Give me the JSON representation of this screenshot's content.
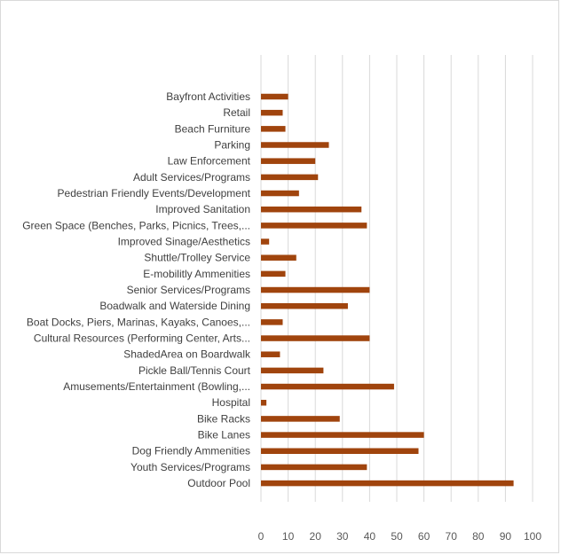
{
  "chart_data": {
    "type": "bar",
    "orientation": "horizontal",
    "categories": [
      "Bayfront Activities",
      "Retail",
      "Beach Furniture",
      "Parking",
      "Law Enforcement",
      "Adult Services/Programs",
      "Pedestrian Friendly Events/Development",
      "Improved Sanitation",
      "Green Space (Benches, Parks, Picnics, Trees,...",
      "Improved Sinage/Aesthetics",
      "Shuttle/Trolley Service",
      "E-mobilitly Ammenities",
      "Senior Services/Programs",
      "Boadwalk and Waterside Dining",
      "Boat Docks, Piers, Marinas, Kayaks, Canoes,...",
      "Cultural Resources (Performing Center, Arts...",
      "ShadedArea on Boardwalk",
      "Pickle Ball/Tennis Court",
      "Amusements/Entertainment (Bowling,...",
      "Hospital",
      "Bike Racks",
      "Bike Lanes",
      "Dog Friendly Ammenities",
      "Youth Services/Programs",
      "Outdoor Pool"
    ],
    "values": [
      10,
      8,
      9,
      25,
      20,
      21,
      14,
      37,
      39,
      3,
      13,
      9,
      40,
      32,
      8,
      40,
      7,
      23,
      49,
      2,
      29,
      60,
      58,
      39,
      93
    ],
    "xlim": [
      0,
      100
    ],
    "xticks": [
      "0",
      "10",
      "20",
      "30",
      "40",
      "50",
      "60",
      "70",
      "80",
      "90",
      "100"
    ],
    "grid": "vertical",
    "bar_color": "#a0440d",
    "title": "",
    "xlabel": "",
    "ylabel": ""
  }
}
